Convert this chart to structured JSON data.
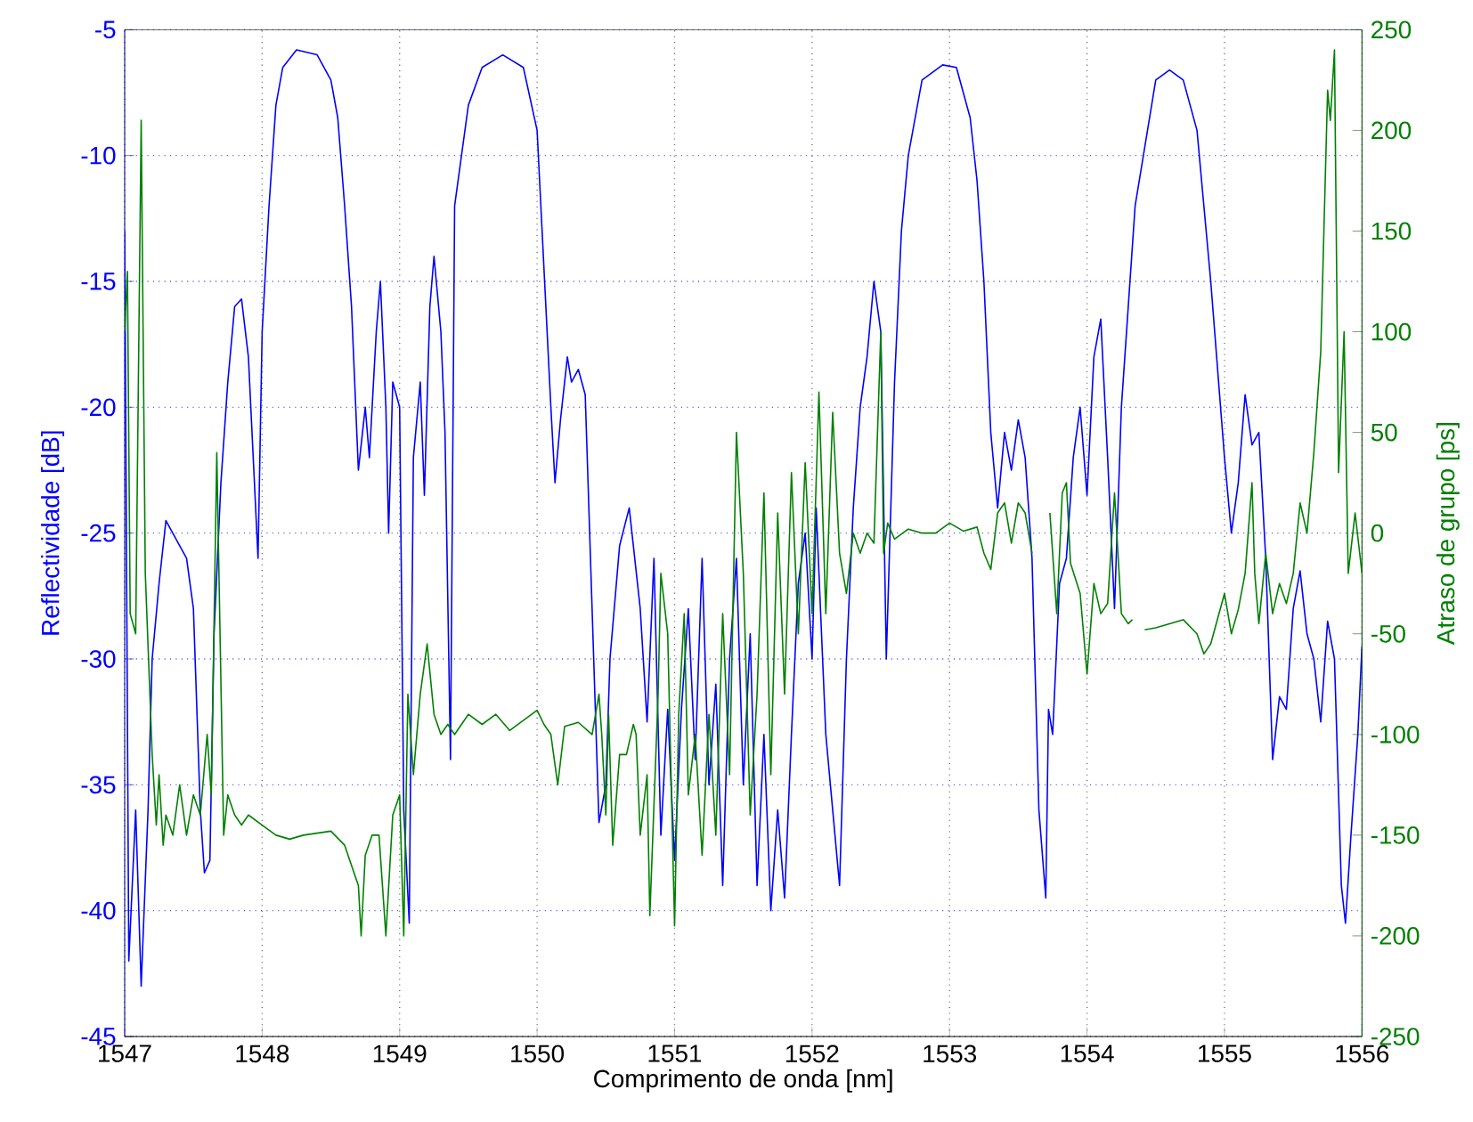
{
  "chart_data": {
    "type": "line",
    "xlabel": "Comprimento de onda [nm]",
    "ylabel": "Reflectividade [dB]",
    "y2label": "Atraso de grupo [ps]",
    "xlim": [
      1547,
      1556
    ],
    "xticks": [
      1547,
      1548,
      1549,
      1550,
      1551,
      1552,
      1553,
      1554,
      1555,
      1556
    ],
    "ylim": [
      -45,
      -5
    ],
    "yticks": [
      -45,
      -40,
      -35,
      -30,
      -25,
      -20,
      -15,
      -10,
      -5
    ],
    "y2lim": [
      -250,
      250
    ],
    "y2ticks": [
      -250,
      -200,
      -150,
      -100,
      -50,
      0,
      50,
      100,
      150,
      200,
      250
    ],
    "grid": true,
    "series": [
      {
        "color": "#0000ff",
        "x": [
          1547.0,
          1547.03,
          1547.08,
          1547.12,
          1547.17,
          1547.2,
          1547.25,
          1547.3,
          1547.4,
          1547.45,
          1547.5,
          1547.55,
          1547.58,
          1547.62,
          1547.65,
          1547.7,
          1547.75,
          1547.8,
          1547.85,
          1547.9,
          1547.97,
          1548.0,
          1548.05,
          1548.1,
          1548.15,
          1548.25,
          1548.4,
          1548.5,
          1548.55,
          1548.6,
          1548.65,
          1548.7,
          1548.75,
          1548.78,
          1548.83,
          1548.86,
          1548.9,
          1548.92,
          1548.95,
          1549.0,
          1549.03,
          1549.07,
          1549.1,
          1549.15,
          1549.18,
          1549.22,
          1549.25,
          1549.3,
          1549.33,
          1549.37,
          1549.4,
          1549.5,
          1549.6,
          1549.75,
          1549.9,
          1550.0,
          1550.05,
          1550.1,
          1550.13,
          1550.17,
          1550.22,
          1550.25,
          1550.3,
          1550.35,
          1550.4,
          1550.45,
          1550.5,
          1550.53,
          1550.6,
          1550.67,
          1550.75,
          1550.8,
          1550.85,
          1550.9,
          1550.95,
          1551.0,
          1551.05,
          1551.1,
          1551.15,
          1551.2,
          1551.25,
          1551.3,
          1551.35,
          1551.4,
          1551.45,
          1551.5,
          1551.55,
          1551.6,
          1551.65,
          1551.7,
          1551.75,
          1551.8,
          1551.85,
          1551.9,
          1551.95,
          1552.0,
          1552.03,
          1552.1,
          1552.15,
          1552.2,
          1552.25,
          1552.3,
          1552.35,
          1552.4,
          1552.45,
          1552.5,
          1552.54,
          1552.6,
          1552.65,
          1552.7,
          1552.8,
          1552.95,
          1553.05,
          1553.15,
          1553.2,
          1553.25,
          1553.3,
          1553.35,
          1553.4,
          1553.45,
          1553.5,
          1553.55,
          1553.6,
          1553.65,
          1553.7,
          1553.72,
          1553.75,
          1553.8,
          1553.85,
          1553.9,
          1553.95,
          1554.0,
          1554.05,
          1554.1,
          1554.15,
          1554.2,
          1554.25,
          1554.35,
          1554.5,
          1554.6,
          1554.7,
          1554.8,
          1554.9,
          1555.0,
          1555.05,
          1555.1,
          1555.15,
          1555.2,
          1555.25,
          1555.3,
          1555.35,
          1555.4,
          1555.45,
          1555.5,
          1555.55,
          1555.6,
          1555.65,
          1555.7,
          1555.75,
          1555.8,
          1555.85,
          1555.88,
          1555.92,
          1555.97,
          1556.0
        ],
        "values": [
          -13,
          -42,
          -36,
          -43,
          -36,
          -30,
          -27,
          -24.5,
          -25.5,
          -26,
          -28,
          -36,
          -38.5,
          -38,
          -29,
          -23,
          -19,
          -16,
          -15.7,
          -18,
          -26,
          -17,
          -12,
          -8,
          -6.5,
          -5.8,
          -6,
          -7,
          -8.5,
          -12,
          -16,
          -22.5,
          -20,
          -22,
          -17,
          -15,
          -20,
          -25,
          -19,
          -20,
          -36,
          -40.5,
          -22,
          -19,
          -23.5,
          -16,
          -14,
          -17,
          -21,
          -34,
          -12,
          -8,
          -6.5,
          -6,
          -6.5,
          -9,
          -14.5,
          -20,
          -23,
          -20.5,
          -18,
          -19,
          -18.5,
          -19.5,
          -28,
          -36.5,
          -35,
          -30,
          -25.5,
          -24,
          -28,
          -32.5,
          -26,
          -37,
          -32,
          -38,
          -32,
          -28,
          -34,
          -26,
          -35,
          -31,
          -39,
          -30,
          -26,
          -35,
          -29,
          -39,
          -33,
          -40,
          -36,
          -39.5,
          -33,
          -27,
          -25,
          -30,
          -24,
          -33,
          -36,
          -39,
          -30,
          -24,
          -20,
          -18,
          -15,
          -17,
          -30,
          -19,
          -13,
          -10,
          -7,
          -6.4,
          -6.5,
          -8.5,
          -11,
          -15,
          -21,
          -24,
          -21,
          -22.5,
          -20.5,
          -22,
          -26,
          -36,
          -39.5,
          -32,
          -33,
          -27,
          -26,
          -22,
          -20,
          -23.5,
          -18,
          -16.5,
          -22,
          -28,
          -20,
          -12,
          -7,
          -6.6,
          -7,
          -9,
          -15,
          -22,
          -25,
          -23,
          -19.5,
          -21.5,
          -21,
          -26,
          -34,
          -31.5,
          -32,
          -28,
          -26.5,
          -29,
          -30,
          -32.5,
          -28.5,
          -30,
          -39,
          -40.5,
          -37,
          -33,
          -29.5
        ]
      },
      {
        "color": "#008000",
        "axis": "y2",
        "x": [
          1547.0,
          1547.02,
          1547.04,
          1547.08,
          1547.12,
          1547.15,
          1547.2,
          1547.23,
          1547.25,
          1547.28,
          1547.3,
          1547.35,
          1547.4,
          1547.45,
          1547.5,
          1547.55,
          1547.6,
          1547.63,
          1547.67,
          1547.72,
          1547.75,
          1547.8,
          1547.85,
          1547.9,
          1548.0,
          1548.1,
          1548.2,
          1548.3,
          1548.5,
          1548.6,
          1548.7,
          1548.72,
          1548.75,
          1548.8,
          1548.85,
          1548.9,
          1548.95,
          1549.0,
          1549.03,
          1549.06,
          1549.1,
          1549.15,
          1549.2,
          1549.25,
          1549.3,
          1549.35,
          1549.4,
          1549.5,
          1549.6,
          1549.7,
          1549.8,
          1549.9,
          1550.0,
          1550.05,
          1550.1,
          1550.15,
          1550.2,
          1550.3,
          1550.4,
          1550.45,
          1550.47,
          1550.5,
          1550.52,
          1550.55,
          1550.6,
          1550.65,
          1550.7,
          1550.72,
          1550.75,
          1550.8,
          1550.82,
          1550.88,
          1550.9,
          1550.95,
          1551.0,
          1551.03,
          1551.07,
          1551.1,
          1551.15,
          1551.2,
          1551.25,
          1551.3,
          1551.35,
          1551.4,
          1551.45,
          1551.5,
          1551.55,
          1551.6,
          1551.65,
          1551.7,
          1551.75,
          1551.8,
          1551.85,
          1551.9,
          1551.95,
          1552.0,
          1552.05,
          1552.1,
          1552.15,
          1552.2,
          1552.25,
          1552.3,
          1552.35,
          1552.4,
          1552.45,
          1552.5,
          1552.52,
          1552.55,
          1552.6,
          1552.7,
          1552.8,
          1552.9,
          1553.0,
          1553.1,
          1553.2,
          1553.25,
          1553.3,
          1553.35,
          1553.4,
          1553.45,
          1553.5,
          1553.55,
          1553.6,
          1553.66,
          1553.73,
          1553.78,
          1553.82,
          1553.85,
          1553.88,
          1553.95,
          1554.0,
          1554.05,
          1554.1,
          1554.15,
          1554.2,
          1554.25,
          1554.3,
          1554.33,
          1554.38,
          1554.42,
          1554.5,
          1554.6,
          1554.7,
          1554.8,
          1554.85,
          1554.9,
          1555.0,
          1555.05,
          1555.1,
          1555.15,
          1555.2,
          1555.22,
          1555.25,
          1555.3,
          1555.35,
          1555.4,
          1555.45,
          1555.5,
          1555.55,
          1555.6,
          1555.65,
          1555.7,
          1555.75,
          1555.77,
          1555.8,
          1555.83,
          1555.87,
          1555.9,
          1555.95,
          1556.0
        ],
        "values": [
          100,
          130,
          -40,
          -50,
          205,
          -20,
          -110,
          -145,
          -120,
          -155,
          -140,
          -150,
          -125,
          -150,
          -130,
          -140,
          -100,
          -130,
          40,
          -150,
          -130,
          -140,
          -145,
          -140,
          -145,
          -150,
          -152,
          -150,
          -148,
          -155,
          -175,
          -200,
          -160,
          -150,
          -150,
          -200,
          -140,
          -130,
          -200,
          -80,
          -120,
          -80,
          -55,
          -90,
          -100,
          -95,
          -100,
          -90,
          -95,
          -90,
          -98,
          -93,
          -88,
          -95,
          -100,
          -125,
          -96,
          -94,
          -100,
          -80,
          -100,
          -140,
          -90,
          -155,
          -110,
          -110,
          -95,
          -100,
          -150,
          -120,
          -190,
          -80,
          -20,
          -50,
          -195,
          -90,
          -40,
          -130,
          -100,
          -160,
          -90,
          -150,
          -40,
          -120,
          50,
          -20,
          -140,
          -80,
          20,
          -120,
          10,
          -80,
          30,
          -50,
          35,
          -40,
          70,
          -40,
          60,
          -10,
          -30,
          0,
          -10,
          0,
          -5,
          100,
          -10,
          5,
          -3,
          2,
          0,
          0,
          5,
          1,
          3,
          -10,
          -18,
          10,
          15,
          -5,
          15,
          10,
          -10,
          null,
          10,
          -40,
          20,
          25,
          -15,
          -30,
          -70,
          -25,
          -40,
          -35,
          20,
          -40,
          -45,
          -43,
          null,
          -48,
          -47,
          -45,
          -43,
          -50,
          -60,
          -55,
          -30,
          -50,
          -38,
          -20,
          25,
          -20,
          -45,
          -10,
          -40,
          -25,
          -35,
          -20,
          15,
          0,
          40,
          90,
          220,
          205,
          240,
          30,
          100,
          -20,
          10,
          -20
        ]
      }
    ]
  }
}
